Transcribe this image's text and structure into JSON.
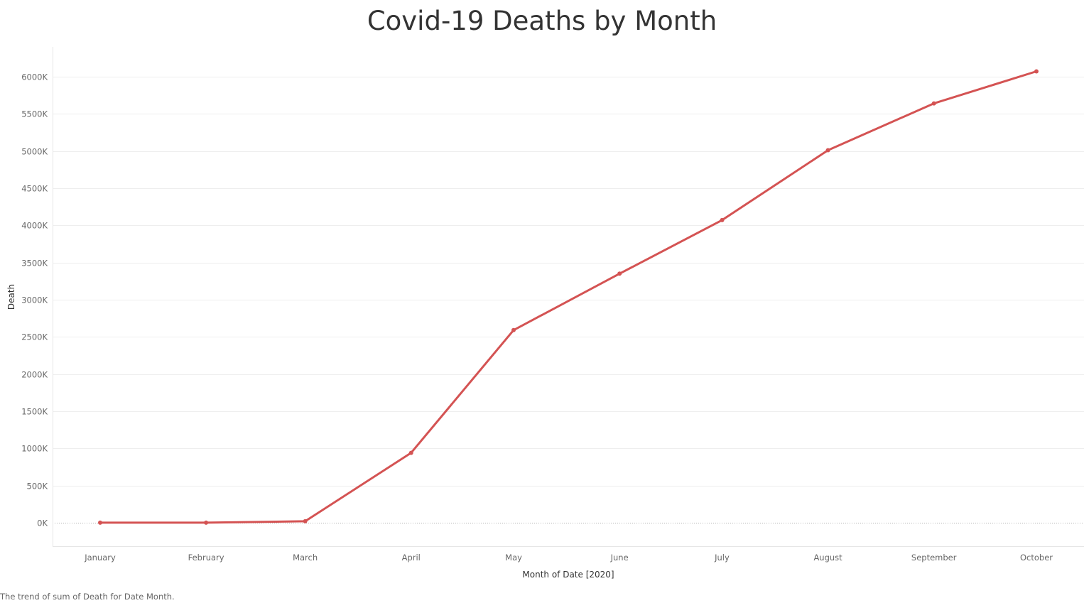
{
  "chart_data": {
    "type": "line",
    "title": "Covid-19 Deaths by Month",
    "xlabel": "Month of Date [2020]",
    "ylabel": "Death",
    "categories": [
      "January",
      "February",
      "March",
      "April",
      "May",
      "June",
      "July",
      "August",
      "September",
      "October"
    ],
    "series": [
      {
        "values": [
          1000,
          1000,
          20000,
          940000,
          2590000,
          3350000,
          4070000,
          5010000,
          5640000,
          6070000
        ]
      }
    ],
    "yticks": [
      "0K",
      "500K",
      "1000K",
      "1500K",
      "2000K",
      "2500K",
      "3000K",
      "3500K",
      "4000K",
      "4500K",
      "5000K",
      "5500K",
      "6000K"
    ],
    "ylim": [
      -325000,
      6400000
    ],
    "grid": true,
    "zero_line": "dotted",
    "line_color": "#d45353",
    "caption": "The trend of sum of Death for Date Month."
  }
}
